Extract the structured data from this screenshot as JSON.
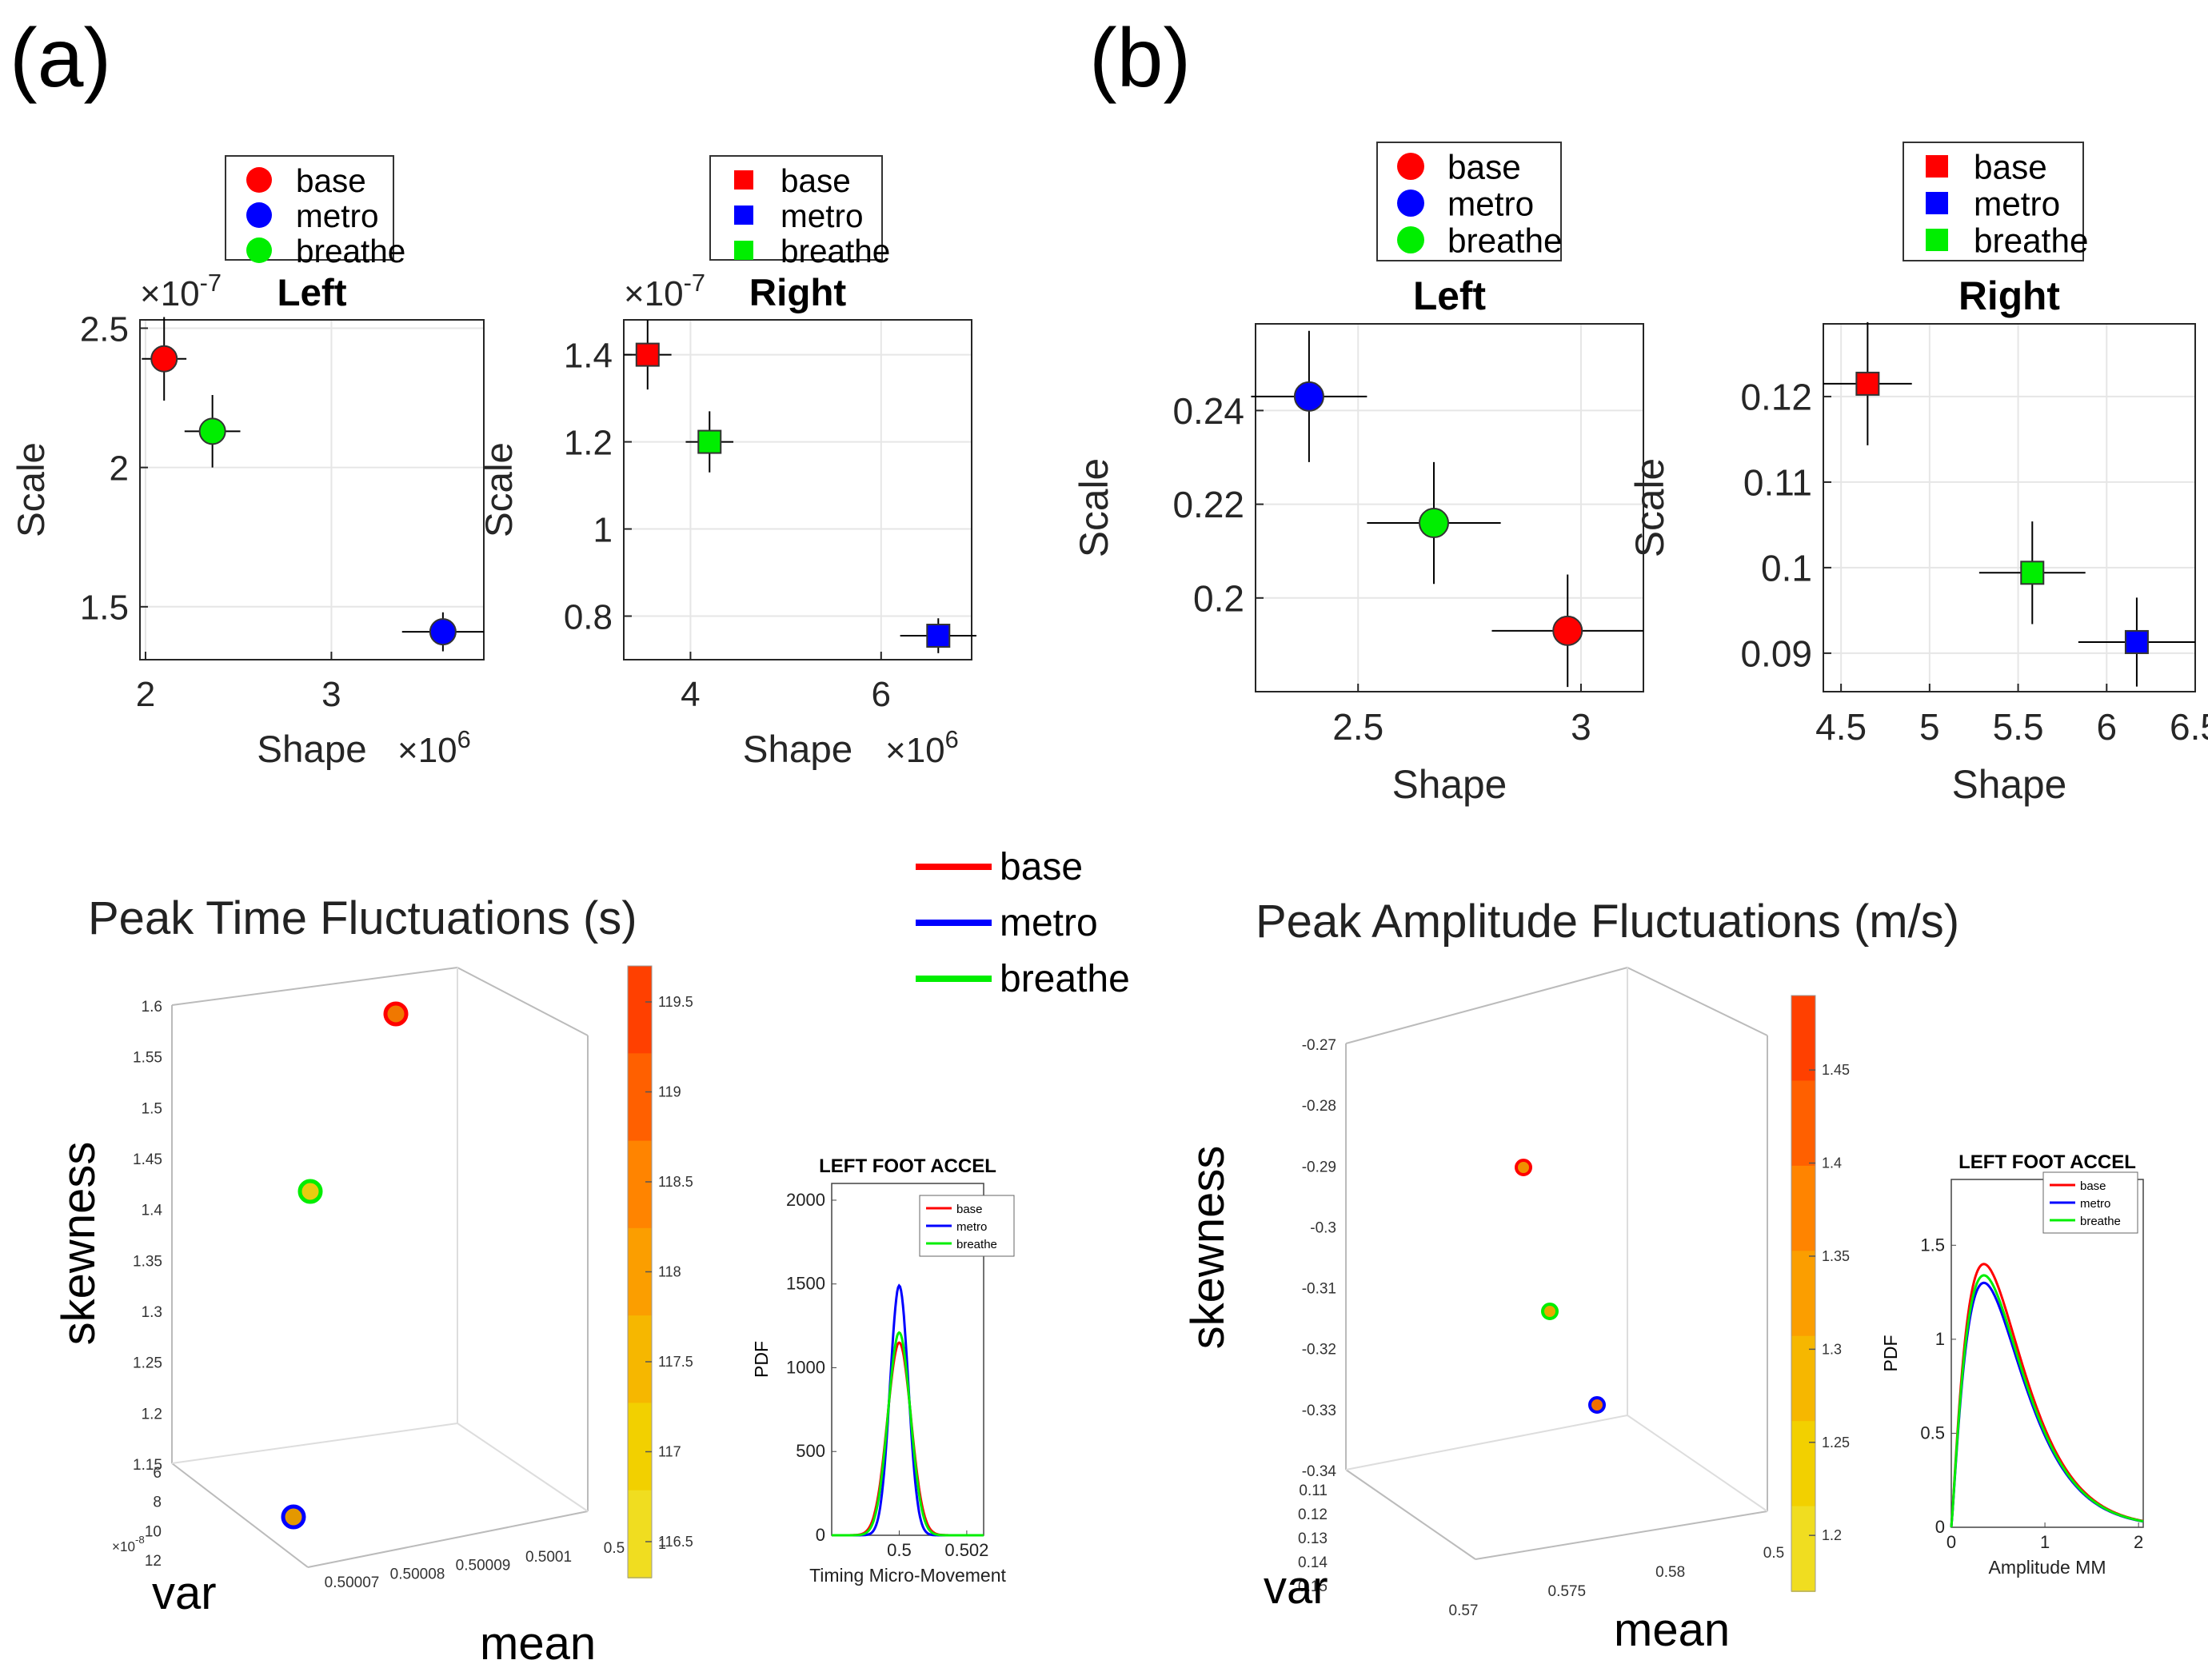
{
  "panels": {
    "a": "(a)",
    "b": "(b)"
  },
  "colors": {
    "base": "#ff0000",
    "metro": "#0000ff",
    "breathe": "#00ee00",
    "grid": "#e6e6e6",
    "axis": "#262626"
  },
  "chart_data": [
    {
      "id": "a-left",
      "type": "scatter",
      "title": "Left",
      "xlabel": "Shape",
      "ylabel": "Scale",
      "x_exponent": "×10",
      "x_exp_power": "6",
      "y_exponent": "×10",
      "y_exp_power": "-7",
      "xlim": [
        1.97,
        3.82
      ],
      "ylim": [
        1.31,
        2.53
      ],
      "xticks": [
        2,
        3
      ],
      "xtick_labels": [
        "2",
        "3"
      ],
      "yticks": [
        1.5,
        2,
        2.5
      ],
      "ytick_labels": [
        "1.5",
        "2",
        "2.5"
      ],
      "marker": "circle",
      "legend": [
        "base",
        "metro",
        "breathe"
      ],
      "series": [
        {
          "name": "base",
          "x": 2.1,
          "y": 2.39,
          "xerr": 0.12,
          "yerr": 0.15
        },
        {
          "name": "metro",
          "x": 3.6,
          "y": 1.41,
          "xerr": 0.22,
          "yerr": 0.07
        },
        {
          "name": "breathe",
          "x": 2.36,
          "y": 2.13,
          "xerr": 0.15,
          "yerr": 0.13
        }
      ]
    },
    {
      "id": "a-right",
      "type": "scatter",
      "title": "Right",
      "xlabel": "Shape",
      "ylabel": "Scale",
      "x_exponent": "×10",
      "x_exp_power": "6",
      "y_exponent": "×10",
      "y_exp_power": "-7",
      "xlim": [
        3.3,
        6.95
      ],
      "ylim": [
        0.7,
        1.48
      ],
      "xticks": [
        4,
        6
      ],
      "xtick_labels": [
        "4",
        "6"
      ],
      "yticks": [
        0.8,
        1,
        1.2,
        1.4
      ],
      "ytick_labels": [
        "0.8",
        "1",
        "1.2",
        "1.4"
      ],
      "marker": "square",
      "legend": [
        "base",
        "metro",
        "breathe"
      ],
      "series": [
        {
          "name": "base",
          "x": 3.55,
          "y": 1.4,
          "xerr": 0.25,
          "yerr": 0.08
        },
        {
          "name": "metro",
          "x": 6.6,
          "y": 0.755,
          "xerr": 0.4,
          "yerr": 0.04
        },
        {
          "name": "breathe",
          "x": 4.2,
          "y": 1.2,
          "xerr": 0.25,
          "yerr": 0.07
        }
      ]
    },
    {
      "id": "b-left",
      "type": "scatter",
      "title": "Left",
      "xlabel": "Shape",
      "ylabel": "Scale",
      "xlim": [
        2.27,
        3.14
      ],
      "ylim": [
        0.18,
        0.2585
      ],
      "xticks": [
        2.5,
        3
      ],
      "xtick_labels": [
        "2.5",
        "3"
      ],
      "yticks": [
        0.2,
        0.22,
        0.24
      ],
      "ytick_labels": [
        "0.2",
        "0.22",
        "0.24"
      ],
      "marker": "circle",
      "legend": [
        "base",
        "metro",
        "breathe"
      ],
      "series": [
        {
          "name": "base",
          "x": 2.97,
          "y": 0.193,
          "xerr": 0.17,
          "yerr": 0.012
        },
        {
          "name": "metro",
          "x": 2.39,
          "y": 0.243,
          "xerr": 0.13,
          "yerr": 0.014
        },
        {
          "name": "breathe",
          "x": 2.67,
          "y": 0.216,
          "xerr": 0.15,
          "yerr": 0.013
        }
      ]
    },
    {
      "id": "b-right",
      "type": "scatter",
      "title": "Right",
      "xlabel": "Shape",
      "ylabel": "Scale",
      "xlim": [
        4.4,
        6.5
      ],
      "ylim": [
        0.0855,
        0.1285
      ],
      "xticks": [
        4.5,
        5,
        5.5,
        6,
        6.5
      ],
      "xtick_labels": [
        "4.5",
        "5",
        "5.5",
        "6",
        "6.5"
      ],
      "yticks": [
        0.09,
        0.1,
        0.11,
        0.12
      ],
      "ytick_labels": [
        "0.09",
        "0.1",
        "0.11",
        "0.12"
      ],
      "marker": "square",
      "legend": [
        "base",
        "metro",
        "breathe"
      ],
      "series": [
        {
          "name": "base",
          "x": 4.65,
          "y": 0.1215,
          "xerr": 0.25,
          "yerr": 0.0072
        },
        {
          "name": "metro",
          "x": 6.17,
          "y": 0.0913,
          "xerr": 0.33,
          "yerr": 0.0052
        },
        {
          "name": "breathe",
          "x": 5.58,
          "y": 0.0994,
          "xerr": 0.3,
          "yerr": 0.006
        }
      ]
    },
    {
      "id": "c-time3d",
      "type": "scatter",
      "title": "Peak Time Fluctuations (s)",
      "xlabel": "mean",
      "ylabel": "var",
      "zlabel": "skewness",
      "z_ticks": [
        "1.15",
        "1.2",
        "1.25",
        "1.3",
        "1.35",
        "1.4",
        "1.45",
        "1.5",
        "1.55",
        "1.6"
      ],
      "z_range": [
        1.15,
        1.6
      ],
      "y_ticks": [
        "6",
        "8",
        "10",
        "12"
      ],
      "y_range": [
        6,
        12
      ],
      "y_exponent": "×10",
      "y_exp_power": "-8",
      "x_ticks": [
        "0.50007",
        "0.50008",
        "0.50009",
        "0.5001",
        "0.5"
      ],
      "x_range": [
        0.50007,
        0.5001
      ],
      "colorbar_ticks": [
        "116.5",
        "117",
        "117.5",
        "118",
        "118.5",
        "119",
        "119.5"
      ],
      "colorbar_range": [
        116.3,
        119.7
      ],
      "colorbar_extra": "1",
      "points": [
        {
          "name": "base",
          "value_color": 119,
          "z": 1.6,
          "fill": "#f07800"
        },
        {
          "name": "breathe",
          "value_color": 116.8,
          "z": 1.42,
          "fill": "#e8cc10"
        },
        {
          "name": "metro",
          "value_color": 117.3,
          "z": 1.16,
          "fill": "#e49800"
        }
      ]
    },
    {
      "id": "c-timepdf",
      "type": "line",
      "title": "LEFT FOOT ACCEL",
      "xlabel": "Timing Micro-Movement",
      "ylabel": "PDF",
      "xlim": [
        0.498,
        0.5025
      ],
      "ylim": [
        0,
        2100
      ],
      "xticks": [
        0.5,
        0.502
      ],
      "xtick_labels": [
        "0.5",
        "0.502"
      ],
      "yticks": [
        0,
        500,
        1000,
        1500,
        2000
      ],
      "ytick_labels": [
        "0",
        "500",
        "1000",
        "1500",
        "2000"
      ],
      "legend": [
        "base",
        "metro",
        "breathe"
      ],
      "series": [
        {
          "name": "base",
          "mu": 0.5,
          "sigma": 0.00035,
          "peak": 1150
        },
        {
          "name": "metro",
          "mu": 0.5,
          "sigma": 0.00027,
          "peak": 1490
        },
        {
          "name": "breathe",
          "mu": 0.5,
          "sigma": 0.00033,
          "peak": 1210
        }
      ]
    },
    {
      "id": "d-amp3d",
      "type": "scatter",
      "title": "Peak Amplitude Fluctuations (m/s)",
      "xlabel": "mean",
      "ylabel": "var",
      "zlabel": "skewness",
      "z_ticks": [
        "-0.34",
        "-0.33",
        "-0.32",
        "-0.31",
        "-0.3",
        "-0.29",
        "-0.28",
        "-0.27"
      ],
      "z_range": [
        -0.34,
        -0.27
      ],
      "y_ticks": [
        "0.11",
        "0.12",
        "0.13",
        "0.14",
        "0.15"
      ],
      "y_range": [
        0.11,
        0.15
      ],
      "x_ticks": [
        "0.57",
        "0.575",
        "0.58",
        "0.5"
      ],
      "x_range": [
        0.57,
        0.58
      ],
      "colorbar_ticks": [
        "1.2",
        "1.25",
        "1.3",
        "1.35",
        "1.4",
        "1.45"
      ],
      "colorbar_range": [
        1.17,
        1.49
      ],
      "points": [
        {
          "name": "base",
          "value_color": 1.3,
          "z": -0.29,
          "fill": "#f09000"
        },
        {
          "name": "breathe",
          "value_color": 1.25,
          "z": -0.314,
          "fill": "#e8a800"
        },
        {
          "name": "metro",
          "value_color": 1.35,
          "z": -0.33,
          "fill": "#f07000"
        }
      ]
    },
    {
      "id": "d-amppdf",
      "type": "line",
      "title": "LEFT FOOT ACCEL",
      "xlabel": "Amplitude MM",
      "ylabel": "PDF",
      "xlim": [
        0,
        2.05
      ],
      "ylim": [
        0,
        1.85
      ],
      "xticks": [
        0,
        1,
        2
      ],
      "xtick_labels": [
        "0",
        "1",
        "2"
      ],
      "yticks": [
        0,
        0.5,
        1,
        1.5
      ],
      "ytick_labels": [
        "0",
        "0.5",
        "1",
        "1.5"
      ],
      "legend": [
        "base",
        "metro",
        "breathe"
      ],
      "series": [
        {
          "name": "base",
          "peak": 1.4
        },
        {
          "name": "metro",
          "peak": 1.3
        },
        {
          "name": "breathe",
          "peak": 1.34
        }
      ]
    }
  ],
  "shared_legend": [
    "base",
    "metro",
    "breathe"
  ]
}
